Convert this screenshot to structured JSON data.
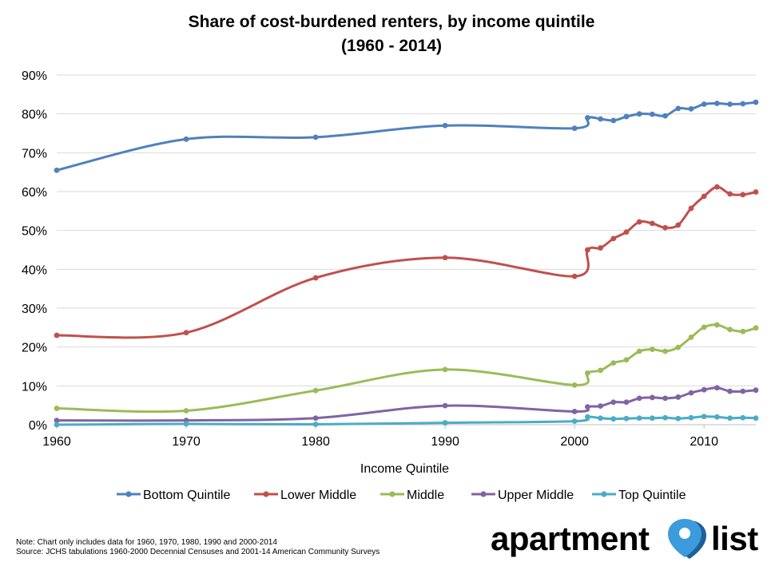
{
  "title_line1": "Share of cost-burdened renters, by income quintile",
  "title_line2": "(1960 - 2014)",
  "chart_data": {
    "type": "line",
    "title": "Share of cost-burdened renters, by income quintile (1960 - 2014)",
    "xlabel": "Income Quintile",
    "ylabel": "",
    "xlim": [
      1960,
      2014
    ],
    "ylim": [
      0,
      90
    ],
    "yticks": [
      "0%",
      "10%",
      "20%",
      "30%",
      "40%",
      "50%",
      "60%",
      "70%",
      "80%",
      "90%"
    ],
    "xticks": [
      "1960",
      "1970",
      "1980",
      "1990",
      "2000",
      "2010"
    ],
    "grid": true,
    "legend_position": "bottom",
    "x": [
      1960,
      1970,
      1980,
      1990,
      2000,
      2001,
      2002,
      2003,
      2004,
      2005,
      2006,
      2007,
      2008,
      2009,
      2010,
      2011,
      2012,
      2013,
      2014
    ],
    "series": [
      {
        "name": "Bottom Quintile",
        "color": "#4f81bd",
        "values": [
          65.5,
          73.5,
          74.0,
          77.0,
          76.3,
          79.0,
          78.7,
          78.3,
          79.3,
          80.0,
          79.9,
          79.5,
          81.4,
          81.3,
          82.5,
          82.7,
          82.5,
          82.6,
          83.0
        ]
      },
      {
        "name": "Lower Middle",
        "color": "#c0504d",
        "values": [
          23.0,
          23.7,
          37.8,
          43.0,
          38.2,
          45.0,
          45.5,
          47.9,
          49.6,
          52.2,
          51.8,
          50.7,
          51.4,
          55.7,
          58.8,
          61.2,
          59.4,
          59.2,
          59.9
        ]
      },
      {
        "name": "Middle",
        "color": "#9bbb59",
        "values": [
          4.2,
          3.6,
          8.8,
          14.2,
          10.2,
          13.3,
          14.0,
          15.9,
          16.7,
          18.9,
          19.4,
          18.9,
          19.9,
          22.5,
          25.1,
          25.7,
          24.5,
          24.0,
          24.9
        ]
      },
      {
        "name": "Upper Middle",
        "color": "#8064a2",
        "values": [
          1.1,
          1.1,
          1.7,
          4.9,
          3.4,
          4.6,
          4.8,
          5.8,
          5.8,
          6.8,
          7.0,
          6.8,
          7.1,
          8.2,
          9.0,
          9.5,
          8.6,
          8.6,
          8.9
        ]
      },
      {
        "name": "Top Quintile",
        "color": "#4bacc6",
        "values": [
          0.0,
          0.2,
          0.1,
          0.5,
          0.9,
          2.0,
          1.7,
          1.5,
          1.6,
          1.7,
          1.7,
          1.8,
          1.6,
          1.8,
          2.1,
          2.0,
          1.7,
          1.8,
          1.7
        ]
      }
    ]
  },
  "notes": {
    "line1": "Note: Chart only includes data for 1960, 1970, 1980, 1990 and 2000-2014",
    "line2": "Source: JCHS tabulations 1960-2000 Decennial Censuses and 2001-14 American Community Surveys"
  },
  "logo": {
    "word1": "apartment",
    "word2": "list",
    "pin_color": "#3c9bdc"
  }
}
